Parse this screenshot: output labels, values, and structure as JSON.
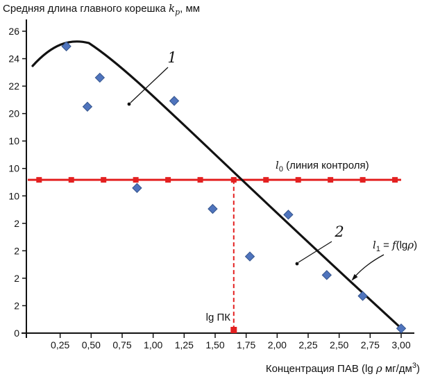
{
  "title": {
    "prefix": "Средняя длина главного корешка ",
    "variable": "k",
    "subscript": "p",
    "suffix": ", мм"
  },
  "x_axis": {
    "tick_labels": [
      "0,25",
      "0,50",
      "0,75",
      "1,00",
      "1,25",
      "1,50",
      "1,75",
      "2,00",
      "2,25",
      "2,50",
      "2,75",
      "3,00"
    ],
    "tick_values": [
      0.25,
      0.5,
      0.75,
      1.0,
      1.25,
      1.5,
      1.75,
      2.0,
      2.25,
      2.5,
      2.75,
      3.0
    ],
    "label": {
      "prefix": "Концентрация ПАВ (lg ",
      "rho": "ρ",
      "mid": " мг/дм",
      "sup": "3",
      "suffix": ")"
    }
  },
  "y_axis": {
    "tick_labels": [
      "26",
      "24",
      "22",
      "20",
      "10",
      "10",
      "10",
      "2",
      "2",
      "2",
      "2",
      "0"
    ]
  },
  "annotations": {
    "curve_number": "1",
    "scatter_number": "2",
    "control_label": {
      "variable": "l",
      "subscript": "0",
      "rest": " (линия контроля)"
    },
    "fit_label": {
      "variable": "l",
      "subscript": "1",
      "eq": " = ",
      "func": "f",
      "open": "(lg",
      "rho": "ρ",
      "close": ")"
    },
    "threshold_label": "lg ПК"
  },
  "colors": {
    "scatter_fill": "#4f74bd",
    "scatter_stroke": "#34548c",
    "control_red": "#e32020",
    "curve_black": "#121212"
  },
  "chart_data": {
    "type": "scatter",
    "title": "Средняя длина главного корешка kp, мм vs Концентрация ПАВ (lg ρ мг/дм3)",
    "xlim": [
      0,
      3.1
    ],
    "ylim": [
      0,
      26
    ],
    "threshold_x": 1.65,
    "series": [
      {
        "name": "scatter-2",
        "type": "scatter",
        "points": [
          [
            0.3,
            24.7
          ],
          [
            0.47,
            19.5
          ],
          [
            0.57,
            22.0
          ],
          [
            0.87,
            12.5
          ],
          [
            1.17,
            20.0
          ],
          [
            1.48,
            10.7
          ],
          [
            1.78,
            6.6
          ],
          [
            2.09,
            10.2
          ],
          [
            2.4,
            5.0
          ],
          [
            2.69,
            3.2
          ],
          [
            3.0,
            0.4
          ]
        ]
      },
      {
        "name": "fit-curve-1",
        "type": "line",
        "passes_through": [
          [
            0.05,
            23.0
          ],
          [
            0.5,
            24.9
          ],
          [
            1.65,
            13.2
          ],
          [
            3.0,
            0.3
          ]
        ]
      },
      {
        "name": "control-line-l0",
        "type": "hline",
        "y": 13.2,
        "marker_x": [
          0.08,
          0.34,
          0.6,
          0.86,
          1.12,
          1.38,
          1.65,
          1.91,
          2.17,
          2.43,
          2.69,
          2.95
        ]
      }
    ]
  }
}
